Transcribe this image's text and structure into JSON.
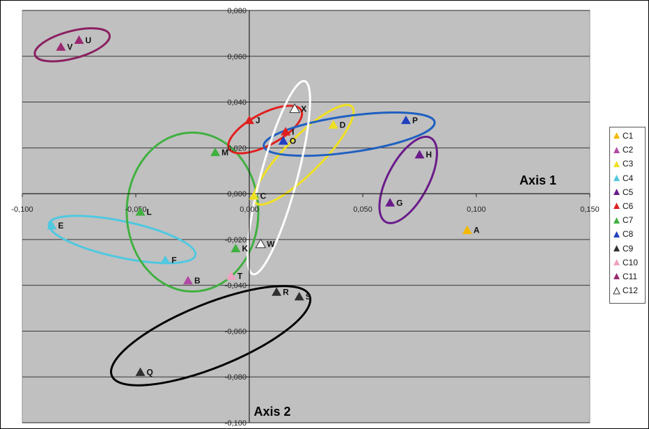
{
  "chart_data": {
    "type": "scatter",
    "xlim": [
      -0.1,
      0.15
    ],
    "ylim": [
      -0.1,
      0.08
    ],
    "x_ticks": [
      "-0,100",
      "-0,050",
      "0,000",
      "0,050",
      "0,100",
      "0,150"
    ],
    "y_ticks": [
      "0,080",
      "0,060",
      "0,040",
      "0,020",
      "0,000",
      "-0,020",
      "-0,040",
      "-0,060",
      "-0,080",
      "-0,100"
    ],
    "x_axis_label": "Axis 1",
    "y_axis_label": "Axis 2",
    "grid": "horizontal",
    "legend_position": "right",
    "background_color": "#c0c0c0",
    "series": [
      {
        "name": "C1",
        "color": "#f5b800",
        "points": [
          {
            "label": "A",
            "x": 0.096,
            "y": -0.016
          }
        ]
      },
      {
        "name": "C2",
        "color": "#b04aa5",
        "points": [
          {
            "label": "B",
            "x": -0.027,
            "y": -0.038
          }
        ]
      },
      {
        "name": "C3",
        "color": "#f0e020",
        "points": [
          {
            "label": "C",
            "x": 0.002,
            "y": -0.001
          },
          {
            "label": "D",
            "x": 0.037,
            "y": 0.03
          }
        ]
      },
      {
        "name": "C4",
        "color": "#50c8e0",
        "points": [
          {
            "label": "E",
            "x": -0.087,
            "y": -0.014
          },
          {
            "label": "F",
            "x": -0.037,
            "y": -0.029
          }
        ]
      },
      {
        "name": "C5",
        "color": "#6a1a8a",
        "points": [
          {
            "label": "G",
            "x": 0.062,
            "y": -0.004
          },
          {
            "label": "H",
            "x": 0.075,
            "y": 0.017
          }
        ]
      },
      {
        "name": "C6",
        "color": "#e02020",
        "points": [
          {
            "label": "J",
            "x": 0.0,
            "y": 0.032
          },
          {
            "label": "I",
            "x": 0.016,
            "y": 0.027
          }
        ]
      },
      {
        "name": "C7",
        "color": "#40b040",
        "points": [
          {
            "label": "K",
            "x": -0.006,
            "y": -0.024
          },
          {
            "label": "L",
            "x": -0.048,
            "y": -0.008
          },
          {
            "label": "M",
            "x": -0.015,
            "y": 0.018
          }
        ]
      },
      {
        "name": "C8",
        "color": "#2040c0",
        "points": [
          {
            "label": "P",
            "x": 0.069,
            "y": 0.032
          },
          {
            "label": "O",
            "x": 0.015,
            "y": 0.023
          }
        ]
      },
      {
        "name": "C9",
        "color": "#303030",
        "points": [
          {
            "label": "Q",
            "x": -0.048,
            "y": -0.078
          },
          {
            "label": "R",
            "x": 0.012,
            "y": -0.043
          },
          {
            "label": "S",
            "x": 0.022,
            "y": -0.045
          }
        ]
      },
      {
        "name": "C10",
        "color": "#f0a0c0",
        "points": [
          {
            "label": "T",
            "x": -0.008,
            "y": -0.036
          }
        ]
      },
      {
        "name": "C11",
        "color": "#9a2a70",
        "points": [
          {
            "label": "U",
            "x": -0.075,
            "y": 0.067
          },
          {
            "label": "V",
            "x": -0.083,
            "y": 0.064
          }
        ]
      },
      {
        "name": "C12",
        "color": "#ffffff",
        "outlined": true,
        "points": [
          {
            "label": "W",
            "x": 0.005,
            "y": -0.022
          },
          {
            "label": "X",
            "x": 0.02,
            "y": 0.037
          }
        ]
      }
    ],
    "ellipses": [
      {
        "cluster": "C11",
        "color": "#8a2060",
        "cx": -0.078,
        "cy": 0.065,
        "rx": 0.017,
        "ry": 0.006,
        "angle": 15
      },
      {
        "cluster": "C4",
        "color": "#50c8e0",
        "cx": -0.056,
        "cy": -0.02,
        "rx": 0.033,
        "ry": 0.008,
        "angle": -12
      },
      {
        "cluster": "C7",
        "color": "#40b040",
        "cx": -0.025,
        "cy": -0.008,
        "rx": 0.029,
        "ry": 0.035,
        "angle": 0
      },
      {
        "cluster": "C6",
        "color": "#e02020",
        "cx": 0.007,
        "cy": 0.028,
        "rx": 0.018,
        "ry": 0.007,
        "angle": 28
      },
      {
        "cluster": "C3",
        "color": "#f0e020",
        "cx": 0.024,
        "cy": 0.017,
        "rx": 0.03,
        "ry": 0.008,
        "angle": 45
      },
      {
        "cluster": "C8",
        "color": "#2060c0",
        "cx": 0.044,
        "cy": 0.026,
        "rx": 0.038,
        "ry": 0.008,
        "angle": 8
      },
      {
        "cluster": "C12",
        "color": "#ffffff",
        "cx": 0.013,
        "cy": 0.007,
        "rx": 0.044,
        "ry": 0.008,
        "angle": 75
      },
      {
        "cluster": "C5",
        "color": "#6a1a8a",
        "cx": 0.07,
        "cy": 0.006,
        "rx": 0.021,
        "ry": 0.009,
        "angle": 62
      },
      {
        "cluster": "C9",
        "color": "#000000",
        "cx": -0.017,
        "cy": -0.062,
        "rx": 0.047,
        "ry": 0.014,
        "angle": 22
      }
    ]
  }
}
